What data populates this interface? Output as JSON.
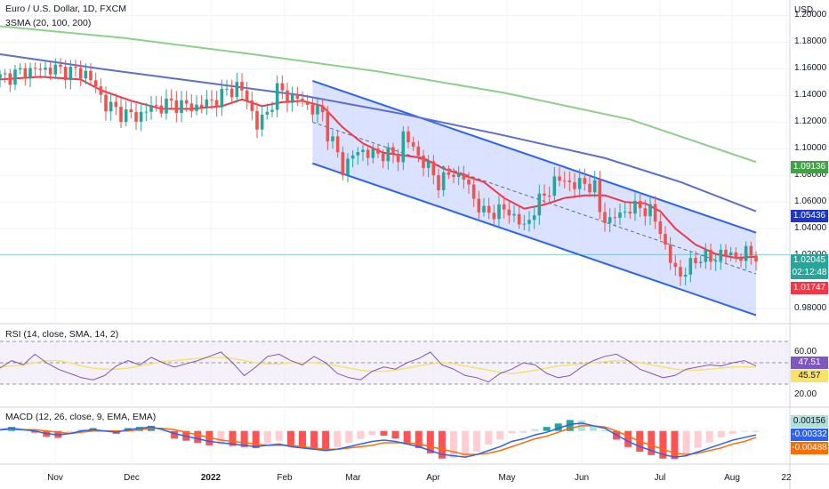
{
  "header": {
    "title": "Euro / U.S. Dollar, 1D, FXCM",
    "sma_legend": "3SMA (20, 100, 200)",
    "rsi_legend": "RSI (14, close, SMA, 14, 2)",
    "macd_legend": "MACD (12, 26, close, 9, EMA, EMA)",
    "currency": "USD"
  },
  "colors": {
    "up": "#26a69a",
    "down": "#ef5350",
    "sma20": "#f23645",
    "sma100": "#5b6fd0",
    "sma200": "#8cd08a",
    "channel": "#2962ff",
    "channel_fill": "#cfd8ff",
    "rsi": "#7e57c2",
    "rsi_ma": "#f7e26a",
    "macd": "#2962ff",
    "signal": "#ff6d00"
  },
  "price_axis": [
    "1.20000",
    "1.18000",
    "1.16000",
    "1.14000",
    "1.12000",
    "1.10000",
    "1.08000",
    "1.06000",
    "1.04000",
    "1.02000",
    "0.98000"
  ],
  "rsi_axis": [
    "60.00",
    "20.00"
  ],
  "badges": {
    "sma200": "1.09136",
    "sma100": "1.05436",
    "price": "1.02045",
    "countdown": "02:12:48",
    "sma20": "1.01747",
    "rsi": "47.51",
    "rsi_ma": "45.57",
    "macd_hist": "0.00156",
    "macd": "-0.00332",
    "signal": "-0.00488"
  },
  "x_axis": [
    "Nov",
    "Dec",
    "2022",
    "Feb",
    "Mar",
    "Apr",
    "May",
    "Jun",
    "Jul",
    "Aug",
    "22"
  ],
  "chart_data": {
    "type": "candlestick",
    "title": "Euro / U.S. Dollar, 1D, FXCM",
    "price_range": [
      0.97,
      1.205
    ],
    "close_path": [
      [
        0,
        1.153
      ],
      [
        6,
        1.159
      ],
      [
        10,
        1.16
      ],
      [
        14,
        1.158
      ],
      [
        17,
        1.157
      ],
      [
        19,
        1.146
      ],
      [
        21,
        1.133
      ],
      [
        24,
        1.127
      ],
      [
        27,
        1.124
      ],
      [
        30,
        1.131
      ],
      [
        32,
        1.132
      ],
      [
        34,
        1.134
      ],
      [
        36,
        1.133
      ],
      [
        38,
        1.131
      ],
      [
        40,
        1.133
      ],
      [
        43,
        1.137
      ],
      [
        45,
        1.143
      ],
      [
        47,
        1.147
      ],
      [
        49,
        1.138
      ],
      [
        51,
        1.117
      ],
      [
        53,
        1.127
      ],
      [
        55,
        1.144
      ],
      [
        58,
        1.138
      ],
      [
        60,
        1.136
      ],
      [
        62,
        1.129
      ],
      [
        64,
        1.127
      ],
      [
        65,
        1.112
      ],
      [
        67,
        1.096
      ],
      [
        68,
        1.085
      ],
      [
        70,
        1.095
      ],
      [
        72,
        1.099
      ],
      [
        74,
        1.095
      ],
      [
        76,
        1.097
      ],
      [
        79,
        1.094
      ],
      [
        80,
        1.111
      ],
      [
        82,
        1.1
      ],
      [
        85,
        1.085
      ],
      [
        87,
        1.075
      ],
      [
        90,
        1.082
      ],
      [
        92,
        1.078
      ],
      [
        94,
        1.063
      ],
      [
        96,
        1.051
      ],
      [
        98,
        1.053
      ],
      [
        100,
        1.054
      ],
      [
        102,
        1.05
      ],
      [
        104,
        1.04
      ],
      [
        106,
        1.055
      ],
      [
        108,
        1.065
      ],
      [
        110,
        1.075
      ],
      [
        112,
        1.077
      ],
      [
        114,
        1.072
      ],
      [
        116,
        1.075
      ],
      [
        118,
        1.07
      ],
      [
        119,
        1.053
      ],
      [
        121,
        1.045
      ],
      [
        123,
        1.052
      ],
      [
        125,
        1.054
      ],
      [
        127,
        1.057
      ],
      [
        129,
        1.052
      ],
      [
        131,
        1.04
      ],
      [
        132,
        1.025
      ],
      [
        133,
        1.015
      ],
      [
        135,
        1.005
      ],
      [
        137,
        1.012
      ],
      [
        139,
        1.02
      ],
      [
        141,
        1.016
      ],
      [
        143,
        1.022
      ],
      [
        145,
        1.02
      ],
      [
        147,
        1.019
      ],
      [
        149,
        1.022
      ],
      [
        150,
        1.02
      ]
    ],
    "sma20_path": [
      [
        0,
        1.152
      ],
      [
        8,
        1.154
      ],
      [
        16,
        1.152
      ],
      [
        20,
        1.144
      ],
      [
        26,
        1.136
      ],
      [
        32,
        1.13
      ],
      [
        38,
        1.13
      ],
      [
        44,
        1.132
      ],
      [
        48,
        1.137
      ],
      [
        52,
        1.132
      ],
      [
        56,
        1.135
      ],
      [
        60,
        1.136
      ],
      [
        64,
        1.132
      ],
      [
        68,
        1.116
      ],
      [
        72,
        1.104
      ],
      [
        76,
        1.097
      ],
      [
        80,
        1.095
      ],
      [
        84,
        1.093
      ],
      [
        88,
        1.085
      ],
      [
        92,
        1.08
      ],
      [
        96,
        1.075
      ],
      [
        100,
        1.063
      ],
      [
        104,
        1.055
      ],
      [
        108,
        1.058
      ],
      [
        112,
        1.063
      ],
      [
        116,
        1.065
      ],
      [
        120,
        1.065
      ],
      [
        124,
        1.06
      ],
      [
        128,
        1.059
      ],
      [
        131,
        1.053
      ],
      [
        134,
        1.04
      ],
      [
        138,
        1.028
      ],
      [
        142,
        1.021
      ],
      [
        146,
        1.018
      ],
      [
        150,
        1.019
      ]
    ],
    "sma100_path": [
      [
        0,
        1.171
      ],
      [
        20,
        1.16
      ],
      [
        40,
        1.15
      ],
      [
        60,
        1.14
      ],
      [
        80,
        1.126
      ],
      [
        100,
        1.11
      ],
      [
        120,
        1.093
      ],
      [
        135,
        1.075
      ],
      [
        150,
        1.053
      ]
    ],
    "sma200_path": [
      [
        0,
        1.192
      ],
      [
        25,
        1.183
      ],
      [
        50,
        1.171
      ],
      [
        75,
        1.158
      ],
      [
        100,
        1.142
      ],
      [
        125,
        1.122
      ],
      [
        150,
        1.09
      ]
    ],
    "channel": {
      "upper": [
        [
          62,
          1.151
        ],
        [
          150,
          1.037
        ]
      ],
      "lower": [
        [
          62,
          1.089
        ],
        [
          150,
          0.975
        ]
      ],
      "mid": [
        [
          62,
          1.12
        ],
        [
          150,
          1.006
        ]
      ]
    },
    "rsi_path": [
      45,
      52,
      48,
      58,
      50,
      44,
      40,
      36,
      34,
      38,
      47,
      52,
      48,
      55,
      50,
      46,
      49,
      52,
      56,
      60,
      50,
      38,
      46,
      56,
      58,
      52,
      48,
      56,
      50,
      40,
      36,
      34,
      42,
      46,
      44,
      50,
      54,
      60,
      48,
      44,
      38,
      36,
      32,
      40,
      44,
      50,
      48,
      40,
      36,
      38,
      46,
      52,
      56,
      58,
      52,
      44,
      40,
      36,
      38,
      44,
      46,
      48,
      47,
      50,
      52,
      47
    ],
    "rsi_ma_path": [
      46,
      47,
      48,
      50,
      52,
      52,
      50,
      47,
      45,
      44,
      44,
      45,
      47,
      49,
      51,
      52,
      53,
      54,
      55,
      55,
      54,
      52,
      50,
      49,
      49,
      50,
      50,
      50,
      49,
      47,
      45,
      43,
      42,
      42,
      43,
      45,
      47,
      49,
      50,
      49,
      47,
      45,
      43,
      41,
      40,
      41,
      43,
      45,
      47,
      48,
      49,
      50,
      51,
      52,
      52,
      50,
      48,
      46,
      44,
      43,
      43,
      44,
      45,
      46,
      46,
      46
    ],
    "rsi_range": [
      0,
      100
    ],
    "macd_path": [
      0.001,
      0.002,
      0.001,
      0.0,
      -0.002,
      -0.003,
      -0.002,
      0.0,
      0.001,
      0.0,
      -0.001,
      0.001,
      0.002,
      0.003,
      0.001,
      -0.002,
      -0.004,
      -0.006,
      -0.008,
      -0.009,
      -0.01,
      -0.011,
      -0.012,
      -0.011,
      -0.01,
      -0.012,
      -0.013,
      -0.014,
      -0.015,
      -0.014,
      -0.012,
      -0.01,
      -0.008,
      -0.007,
      -0.008,
      -0.01,
      -0.012,
      -0.015,
      -0.018,
      -0.019,
      -0.02,
      -0.018,
      -0.015,
      -0.012,
      -0.008,
      -0.006,
      -0.003,
      -0.001,
      0.002,
      0.005,
      0.006,
      0.004,
      0.002,
      -0.003,
      -0.008,
      -0.012,
      -0.015,
      -0.018,
      -0.02,
      -0.019,
      -0.016,
      -0.013,
      -0.01,
      -0.007,
      -0.005,
      -0.003
    ],
    "signal_path": [
      0.001,
      0.001,
      0.001,
      0.001,
      0.0,
      -0.001,
      -0.002,
      -0.001,
      0.0,
      0.0,
      0.0,
      0.0,
      0.001,
      0.002,
      0.002,
      0.001,
      -0.001,
      -0.003,
      -0.005,
      -0.007,
      -0.008,
      -0.009,
      -0.01,
      -0.011,
      -0.011,
      -0.011,
      -0.012,
      -0.013,
      -0.014,
      -0.014,
      -0.013,
      -0.012,
      -0.011,
      -0.009,
      -0.009,
      -0.009,
      -0.01,
      -0.012,
      -0.014,
      -0.016,
      -0.018,
      -0.018,
      -0.017,
      -0.015,
      -0.012,
      -0.009,
      -0.006,
      -0.004,
      -0.001,
      0.002,
      0.004,
      0.004,
      0.003,
      0.0,
      -0.004,
      -0.008,
      -0.011,
      -0.014,
      -0.017,
      -0.018,
      -0.017,
      -0.015,
      -0.013,
      -0.01,
      -0.008,
      -0.005
    ],
    "macd_range": [
      -0.024,
      0.01
    ]
  }
}
